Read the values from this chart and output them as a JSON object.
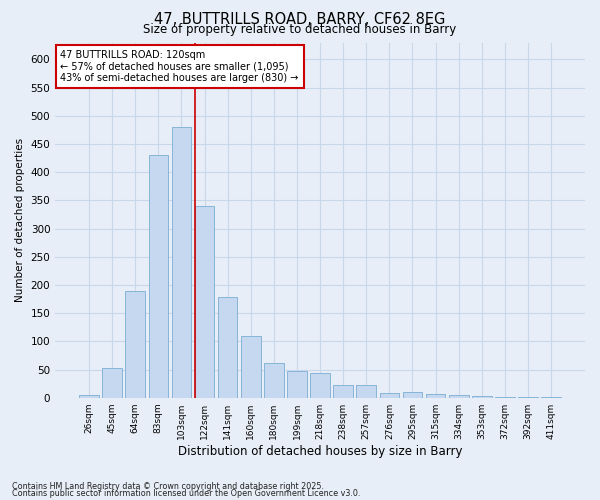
{
  "title1": "47, BUTTRILLS ROAD, BARRY, CF62 8EG",
  "title2": "Size of property relative to detached houses in Barry",
  "xlabel": "Distribution of detached houses by size in Barry",
  "ylabel": "Number of detached properties",
  "categories": [
    "26sqm",
    "45sqm",
    "64sqm",
    "83sqm",
    "103sqm",
    "122sqm",
    "141sqm",
    "160sqm",
    "180sqm",
    "199sqm",
    "218sqm",
    "238sqm",
    "257sqm",
    "276sqm",
    "295sqm",
    "315sqm",
    "334sqm",
    "353sqm",
    "372sqm",
    "392sqm",
    "411sqm"
  ],
  "values": [
    5,
    52,
    190,
    430,
    480,
    340,
    178,
    110,
    62,
    47,
    44,
    22,
    22,
    9,
    11,
    6,
    4,
    3,
    1,
    2,
    1
  ],
  "bar_color": "#c5d8f0",
  "bar_edge_color": "#7aadd4",
  "grid_color": "#c8d8ea",
  "bg_color": "#e8eef7",
  "vline_color": "#cc0000",
  "vline_pos": 4.575,
  "annotation_title": "47 BUTTRILLS ROAD: 120sqm",
  "annotation_line1": "← 57% of detached houses are smaller (1,095)",
  "annotation_line2": "43% of semi-detached houses are larger (830) →",
  "annotation_box_color": "#ffffff",
  "annotation_box_edge": "#cc0000",
  "ylim": [
    0,
    630
  ],
  "yticks": [
    0,
    50,
    100,
    150,
    200,
    250,
    300,
    350,
    400,
    450,
    500,
    550,
    600
  ],
  "footnote1": "Contains HM Land Registry data © Crown copyright and database right 2025.",
  "footnote2": "Contains public sector information licensed under the Open Government Licence v3.0."
}
